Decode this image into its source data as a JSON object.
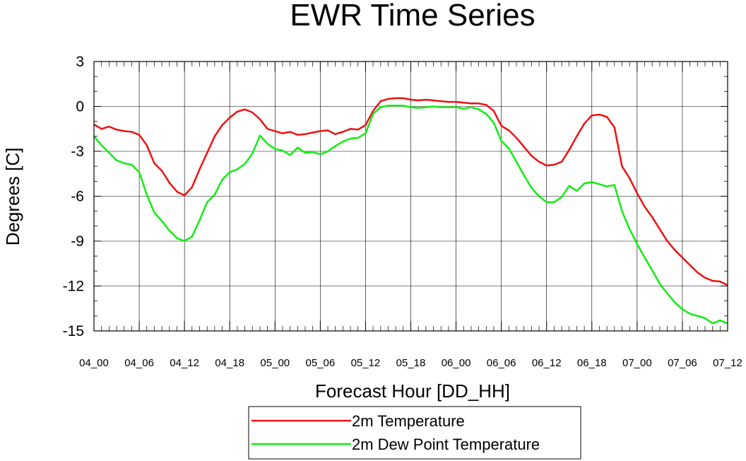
{
  "chart_data": {
    "type": "line",
    "title": "EWR Time Series",
    "xlabel": "Forecast Hour [DD_HH]",
    "ylabel": "Degrees [C]",
    "x_tick_labels": [
      "04_00",
      "04_06",
      "04_12",
      "04_18",
      "05_00",
      "05_06",
      "05_12",
      "05_18",
      "06_00",
      "06_06",
      "06_12",
      "06_18",
      "07_00",
      "07_06",
      "07_12"
    ],
    "y_ticks": [
      3,
      0,
      -3,
      -6,
      -9,
      -12,
      -15
    ],
    "ylim": [
      -15,
      3
    ],
    "xlim": [
      0,
      84
    ],
    "grid": true,
    "legend_position": "bottom",
    "series": [
      {
        "name": "2m Temperature",
        "color": "#ee1111",
        "x": [
          0,
          1,
          2,
          3,
          4,
          5,
          6,
          7,
          8,
          9,
          10,
          11,
          12,
          13,
          14,
          15,
          16,
          17,
          18,
          19,
          20,
          21,
          22,
          23,
          24,
          25,
          26,
          27,
          28,
          29,
          30,
          31,
          32,
          33,
          34,
          35,
          36,
          37,
          38,
          39,
          40,
          41,
          42,
          43,
          44,
          45,
          46,
          47,
          48,
          49,
          50,
          51,
          52,
          53,
          54,
          55,
          56,
          57,
          58,
          59,
          60,
          61,
          62,
          63,
          64,
          65,
          66,
          67,
          68,
          69,
          70,
          71,
          72,
          73,
          74,
          75,
          76,
          77,
          78,
          79,
          80,
          81,
          82,
          83,
          84
        ],
        "values": [
          -1.2,
          -1.5,
          -1.35,
          -1.55,
          -1.65,
          -1.7,
          -1.9,
          -2.6,
          -3.8,
          -4.3,
          -5.1,
          -5.7,
          -5.95,
          -5.4,
          -4.2,
          -3.1,
          -2.0,
          -1.25,
          -0.75,
          -0.35,
          -0.2,
          -0.4,
          -0.85,
          -1.5,
          -1.65,
          -1.8,
          -1.7,
          -1.9,
          -1.85,
          -1.75,
          -1.65,
          -1.6,
          -1.85,
          -1.7,
          -1.5,
          -1.55,
          -1.25,
          -0.3,
          0.35,
          0.5,
          0.55,
          0.55,
          0.45,
          0.4,
          0.45,
          0.4,
          0.35,
          0.3,
          0.3,
          0.25,
          0.2,
          0.2,
          0.1,
          -0.3,
          -1.3,
          -1.6,
          -2.1,
          -2.7,
          -3.3,
          -3.7,
          -3.95,
          -3.9,
          -3.7,
          -2.9,
          -2.0,
          -1.15,
          -0.6,
          -0.55,
          -0.7,
          -1.4,
          -4.0,
          -4.8,
          -5.8,
          -6.7,
          -7.4,
          -8.2,
          -9.0,
          -9.6,
          -10.1,
          -10.6,
          -11.1,
          -11.45,
          -11.65,
          -11.7,
          -11.95
        ]
      },
      {
        "name": "2m Dew Point Temperature",
        "color": "#11ee11",
        "x": [
          0,
          1,
          2,
          3,
          4,
          5,
          6,
          7,
          8,
          9,
          10,
          11,
          12,
          13,
          14,
          15,
          16,
          17,
          18,
          19,
          20,
          21,
          22,
          23,
          24,
          25,
          26,
          27,
          28,
          29,
          30,
          31,
          32,
          33,
          34,
          35,
          36,
          37,
          38,
          39,
          40,
          41,
          42,
          43,
          44,
          45,
          46,
          47,
          48,
          49,
          50,
          51,
          52,
          53,
          54,
          55,
          56,
          57,
          58,
          59,
          60,
          61,
          62,
          63,
          64,
          65,
          66,
          67,
          68,
          69,
          70,
          71,
          72,
          73,
          74,
          75,
          76,
          77,
          78,
          79,
          80,
          81,
          82,
          83,
          84
        ],
        "values": [
          -2.0,
          -2.6,
          -3.1,
          -3.6,
          -3.8,
          -3.9,
          -4.4,
          -5.9,
          -7.1,
          -7.65,
          -8.3,
          -8.8,
          -9.0,
          -8.7,
          -7.6,
          -6.4,
          -5.9,
          -4.9,
          -4.4,
          -4.2,
          -3.85,
          -3.15,
          -1.95,
          -2.5,
          -2.85,
          -2.95,
          -3.25,
          -2.75,
          -3.1,
          -3.05,
          -3.2,
          -3.0,
          -2.65,
          -2.35,
          -2.15,
          -2.1,
          -1.8,
          -0.5,
          -0.05,
          0.05,
          0.05,
          0.05,
          -0.05,
          -0.1,
          -0.05,
          0.0,
          -0.05,
          -0.05,
          -0.05,
          -0.15,
          -0.05,
          -0.2,
          -0.5,
          -1.1,
          -2.3,
          -2.8,
          -3.7,
          -4.6,
          -5.45,
          -6.0,
          -6.4,
          -6.4,
          -6.05,
          -5.3,
          -5.65,
          -5.15,
          -5.05,
          -5.2,
          -5.35,
          -5.25,
          -7.0,
          -8.2,
          -9.2,
          -10.1,
          -10.95,
          -11.85,
          -12.5,
          -13.1,
          -13.55,
          -13.85,
          -14.0,
          -14.15,
          -14.5,
          -14.3,
          -14.5
        ]
      }
    ]
  }
}
